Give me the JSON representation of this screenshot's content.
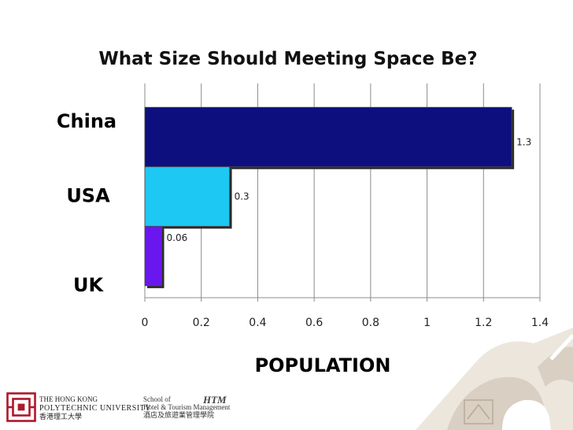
{
  "chart_data": {
    "type": "bar",
    "orientation": "horizontal",
    "title": "What Size Should Meeting Space Be?",
    "xlabel": "POPULATION",
    "ylabel": "",
    "categories": [
      "China",
      "USA",
      "UK"
    ],
    "values": [
      1.3,
      0.3,
      0.06
    ],
    "data_labels": [
      "1.3",
      "0.3",
      "0.06"
    ],
    "bar_colors": [
      "#0d0f7f",
      "#1dc8f2",
      "#6a16ee"
    ],
    "xlim": [
      0,
      1.4
    ],
    "x_ticks": [
      0,
      0.2,
      0.4,
      0.6,
      0.8,
      1,
      1.2,
      1.4
    ],
    "x_tick_labels": [
      "0",
      "0.2",
      "0.4",
      "0.6",
      "0.8",
      "1",
      "1.2",
      "1.4"
    ],
    "grid": true,
    "legend": "none"
  },
  "footer": {
    "polyu_line1": "THE HONG KONG",
    "polyu_line2": "POLYTECHNIC UNIVERSITY",
    "polyu_line3": "香港理工大學",
    "school_line1": "School of",
    "school_line2": "Hotel & Tourism Management",
    "school_line3": "酒店及旅遊業管理學院",
    "brand": "HTM"
  }
}
